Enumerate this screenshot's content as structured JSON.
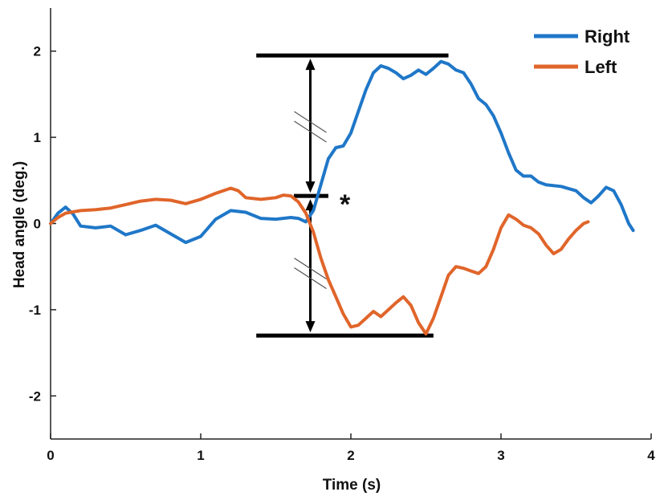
{
  "chart_data": {
    "type": "line",
    "xlabel": "Time (s)",
    "ylabel": "Head angle (deg.)",
    "xlim": [
      0,
      4
    ],
    "ylim": [
      -2.5,
      2.5
    ],
    "x_ticks": [
      0,
      1,
      2,
      3,
      4
    ],
    "y_ticks": [
      -2,
      -1,
      0,
      1,
      2
    ],
    "x_tick_labels": [
      "0",
      "1",
      "2",
      "3",
      "4"
    ],
    "y_tick_labels": [
      "-2",
      "-1",
      "0",
      "1",
      "2"
    ],
    "grid": false,
    "legend_position": "top-right",
    "series": [
      {
        "name": "Right",
        "color": "#1f77c8",
        "points": [
          [
            0.0,
            0.0
          ],
          [
            0.05,
            0.12
          ],
          [
            0.1,
            0.19
          ],
          [
            0.15,
            0.11
          ],
          [
            0.2,
            -0.03
          ],
          [
            0.3,
            -0.05
          ],
          [
            0.4,
            -0.03
          ],
          [
            0.5,
            -0.13
          ],
          [
            0.6,
            -0.08
          ],
          [
            0.7,
            -0.02
          ],
          [
            0.8,
            -0.12
          ],
          [
            0.9,
            -0.22
          ],
          [
            1.0,
            -0.15
          ],
          [
            1.1,
            0.05
          ],
          [
            1.2,
            0.15
          ],
          [
            1.3,
            0.13
          ],
          [
            1.4,
            0.06
          ],
          [
            1.5,
            0.05
          ],
          [
            1.6,
            0.07
          ],
          [
            1.65,
            0.06
          ],
          [
            1.7,
            0.02
          ],
          [
            1.75,
            0.15
          ],
          [
            1.8,
            0.45
          ],
          [
            1.85,
            0.75
          ],
          [
            1.9,
            0.88
          ],
          [
            1.95,
            0.9
          ],
          [
            2.0,
            1.05
          ],
          [
            2.05,
            1.3
          ],
          [
            2.1,
            1.55
          ],
          [
            2.15,
            1.75
          ],
          [
            2.2,
            1.83
          ],
          [
            2.25,
            1.8
          ],
          [
            2.3,
            1.75
          ],
          [
            2.35,
            1.68
          ],
          [
            2.4,
            1.72
          ],
          [
            2.45,
            1.78
          ],
          [
            2.5,
            1.73
          ],
          [
            2.55,
            1.8
          ],
          [
            2.6,
            1.88
          ],
          [
            2.65,
            1.85
          ],
          [
            2.7,
            1.78
          ],
          [
            2.75,
            1.75
          ],
          [
            2.8,
            1.62
          ],
          [
            2.85,
            1.45
          ],
          [
            2.9,
            1.38
          ],
          [
            2.95,
            1.25
          ],
          [
            3.0,
            1.05
          ],
          [
            3.05,
            0.82
          ],
          [
            3.1,
            0.62
          ],
          [
            3.15,
            0.55
          ],
          [
            3.2,
            0.55
          ],
          [
            3.25,
            0.48
          ],
          [
            3.3,
            0.45
          ],
          [
            3.4,
            0.43
          ],
          [
            3.5,
            0.38
          ],
          [
            3.55,
            0.3
          ],
          [
            3.6,
            0.24
          ],
          [
            3.65,
            0.32
          ],
          [
            3.7,
            0.42
          ],
          [
            3.75,
            0.38
          ],
          [
            3.8,
            0.22
          ],
          [
            3.85,
            0.0
          ],
          [
            3.88,
            -0.08
          ]
        ]
      },
      {
        "name": "Left",
        "color": "#e0652a",
        "points": [
          [
            0.0,
            0.0
          ],
          [
            0.05,
            0.07
          ],
          [
            0.1,
            0.12
          ],
          [
            0.2,
            0.15
          ],
          [
            0.3,
            0.16
          ],
          [
            0.4,
            0.18
          ],
          [
            0.5,
            0.22
          ],
          [
            0.6,
            0.26
          ],
          [
            0.7,
            0.28
          ],
          [
            0.8,
            0.27
          ],
          [
            0.9,
            0.23
          ],
          [
            1.0,
            0.28
          ],
          [
            1.1,
            0.35
          ],
          [
            1.2,
            0.41
          ],
          [
            1.25,
            0.38
          ],
          [
            1.3,
            0.3
          ],
          [
            1.4,
            0.28
          ],
          [
            1.5,
            0.3
          ],
          [
            1.55,
            0.33
          ],
          [
            1.6,
            0.32
          ],
          [
            1.65,
            0.25
          ],
          [
            1.7,
            0.12
          ],
          [
            1.75,
            -0.1
          ],
          [
            1.8,
            -0.4
          ],
          [
            1.85,
            -0.65
          ],
          [
            1.9,
            -0.85
          ],
          [
            1.95,
            -1.05
          ],
          [
            2.0,
            -1.2
          ],
          [
            2.05,
            -1.18
          ],
          [
            2.1,
            -1.1
          ],
          [
            2.15,
            -1.02
          ],
          [
            2.2,
            -1.08
          ],
          [
            2.25,
            -1.0
          ],
          [
            2.3,
            -0.92
          ],
          [
            2.35,
            -0.85
          ],
          [
            2.4,
            -0.95
          ],
          [
            2.45,
            -1.15
          ],
          [
            2.5,
            -1.28
          ],
          [
            2.55,
            -1.1
          ],
          [
            2.6,
            -0.85
          ],
          [
            2.65,
            -0.6
          ],
          [
            2.7,
            -0.5
          ],
          [
            2.75,
            -0.52
          ],
          [
            2.8,
            -0.55
          ],
          [
            2.85,
            -0.58
          ],
          [
            2.9,
            -0.5
          ],
          [
            2.95,
            -0.3
          ],
          [
            3.0,
            -0.05
          ],
          [
            3.05,
            0.1
          ],
          [
            3.1,
            0.05
          ],
          [
            3.15,
            -0.02
          ],
          [
            3.2,
            -0.05
          ],
          [
            3.25,
            -0.12
          ],
          [
            3.3,
            -0.25
          ],
          [
            3.35,
            -0.35
          ],
          [
            3.4,
            -0.3
          ],
          [
            3.45,
            -0.18
          ],
          [
            3.5,
            -0.08
          ],
          [
            3.55,
            0.0
          ],
          [
            3.58,
            0.02
          ]
        ]
      }
    ],
    "annotations": {
      "top_bar": {
        "x_start": 1.37,
        "x_end": 2.65,
        "y": 1.95
      },
      "bottom_bar": {
        "x_start": 1.37,
        "x_end": 2.55,
        "y": -1.3
      },
      "mid_bar": {
        "x_start": 1.62,
        "x_end": 1.85,
        "y": 0.32
      },
      "arrow_x": 1.73,
      "star_label": "*",
      "break_marks": [
        {
          "x": 1.73,
          "y": 1.15
        },
        {
          "x": 1.73,
          "y": -0.55
        }
      ]
    }
  }
}
